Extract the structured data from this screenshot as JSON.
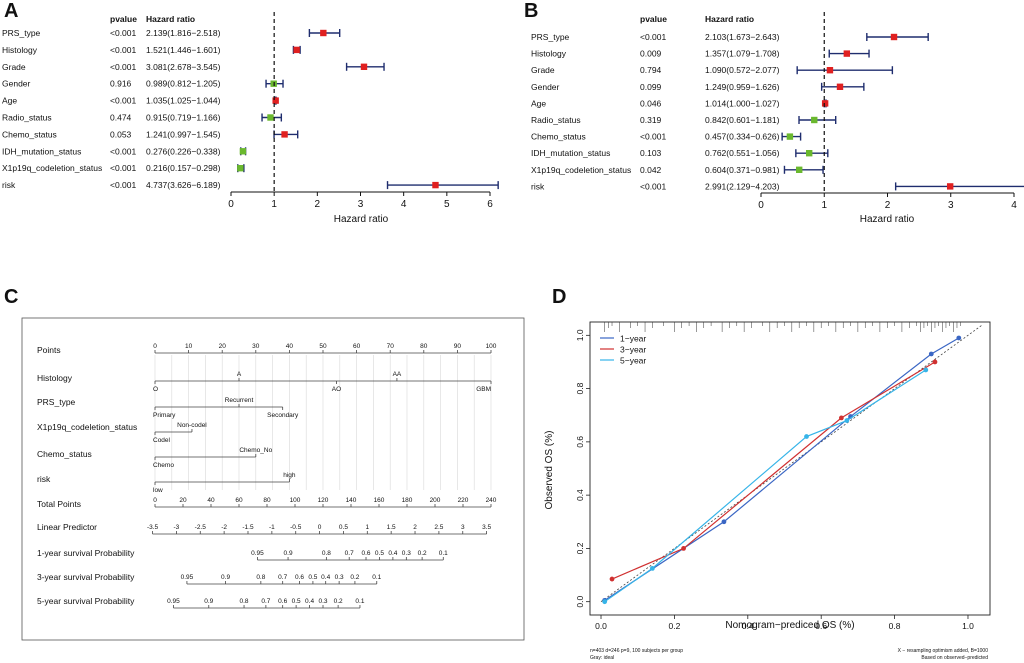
{
  "chart_data": [
    {
      "type": "forest",
      "panel": "A",
      "col_pvalue": "pvalue",
      "col_hr": "Hazard ratio",
      "xlabel": "Hazard ratio",
      "xlim": [
        0,
        6
      ],
      "ticks": [
        0,
        1,
        2,
        3,
        4,
        5,
        6
      ],
      "ref_line": 1,
      "rows": [
        {
          "name": "PRS_type",
          "pvalue": "<0.001",
          "hr_text": "2.139(1.816−2.518)",
          "hr": 2.139,
          "lo": 1.816,
          "hi": 2.518,
          "color": "#e02020"
        },
        {
          "name": "Histology",
          "pvalue": "<0.001",
          "hr_text": "1.521(1.446−1.601)",
          "hr": 1.521,
          "lo": 1.446,
          "hi": 1.601,
          "color": "#e02020"
        },
        {
          "name": "Grade",
          "pvalue": "<0.001",
          "hr_text": "3.081(2.678−3.545)",
          "hr": 3.081,
          "lo": 2.678,
          "hi": 3.545,
          "color": "#e02020"
        },
        {
          "name": "Gender",
          "pvalue": "0.916",
          "hr_text": "0.989(0.812−1.205)",
          "hr": 0.989,
          "lo": 0.812,
          "hi": 1.205,
          "color": "#6ab82e"
        },
        {
          "name": "Age",
          "pvalue": "<0.001",
          "hr_text": "1.035(1.025−1.044)",
          "hr": 1.035,
          "lo": 1.025,
          "hi": 1.044,
          "color": "#e02020"
        },
        {
          "name": "Radio_status",
          "pvalue": "0.474",
          "hr_text": "0.915(0.719−1.166)",
          "hr": 0.915,
          "lo": 0.719,
          "hi": 1.166,
          "color": "#6ab82e"
        },
        {
          "name": "Chemo_status",
          "pvalue": "0.053",
          "hr_text": "1.241(0.997−1.545)",
          "hr": 1.241,
          "lo": 0.997,
          "hi": 1.545,
          "color": "#e02020"
        },
        {
          "name": "IDH_mutation_status",
          "pvalue": "<0.001",
          "hr_text": "0.276(0.226−0.338)",
          "hr": 0.276,
          "lo": 0.226,
          "hi": 0.338,
          "color": "#6ab82e"
        },
        {
          "name": "X1p19q_codeletion_status",
          "pvalue": "<0.001",
          "hr_text": "0.216(0.157−0.298)",
          "hr": 0.216,
          "lo": 0.157,
          "hi": 0.298,
          "color": "#6ab82e"
        },
        {
          "name": "risk",
          "pvalue": "<0.001",
          "hr_text": "4.737(3.626−6.189)",
          "hr": 4.737,
          "lo": 3.626,
          "hi": 6.189,
          "color": "#e02020"
        }
      ]
    },
    {
      "type": "forest",
      "panel": "B",
      "col_pvalue": "pvalue",
      "col_hr": "Hazard ratio",
      "xlabel": "Hazard ratio",
      "xlim": [
        0,
        4
      ],
      "ticks": [
        0,
        1,
        2,
        3,
        4
      ],
      "ref_line": 1,
      "rows": [
        {
          "name": "PRS_type",
          "pvalue": "<0.001",
          "hr_text": "2.103(1.673−2.643)",
          "hr": 2.103,
          "lo": 1.673,
          "hi": 2.643,
          "color": "#e02020"
        },
        {
          "name": "Histology",
          "pvalue": "0.009",
          "hr_text": "1.357(1.079−1.708)",
          "hr": 1.357,
          "lo": 1.079,
          "hi": 1.708,
          "color": "#e02020"
        },
        {
          "name": "Grade",
          "pvalue": "0.794",
          "hr_text": "1.090(0.572−2.077)",
          "hr": 1.09,
          "lo": 0.572,
          "hi": 2.077,
          "color": "#e02020"
        },
        {
          "name": "Gender",
          "pvalue": "0.099",
          "hr_text": "1.249(0.959−1.626)",
          "hr": 1.249,
          "lo": 0.959,
          "hi": 1.626,
          "color": "#e02020"
        },
        {
          "name": "Age",
          "pvalue": "0.046",
          "hr_text": "1.014(1.000−1.027)",
          "hr": 1.014,
          "lo": 1.0,
          "hi": 1.027,
          "color": "#e02020"
        },
        {
          "name": "Radio_status",
          "pvalue": "0.319",
          "hr_text": "0.842(0.601−1.181)",
          "hr": 0.842,
          "lo": 0.601,
          "hi": 1.181,
          "color": "#6ab82e"
        },
        {
          "name": "Chemo_status",
          "pvalue": "<0.001",
          "hr_text": "0.457(0.334−0.626)",
          "hr": 0.457,
          "lo": 0.334,
          "hi": 0.626,
          "color": "#6ab82e"
        },
        {
          "name": "IDH_mutation_status",
          "pvalue": "0.103",
          "hr_text": "0.762(0.551−1.056)",
          "hr": 0.762,
          "lo": 0.551,
          "hi": 1.056,
          "color": "#6ab82e"
        },
        {
          "name": "X1p19q_codeletion_status",
          "pvalue": "0.042",
          "hr_text": "0.604(0.371−0.981)",
          "hr": 0.604,
          "lo": 0.371,
          "hi": 0.981,
          "color": "#6ab82e"
        },
        {
          "name": "risk",
          "pvalue": "<0.001",
          "hr_text": "2.991(2.129−4.203)",
          "hr": 2.991,
          "lo": 2.129,
          "hi": 4.203,
          "color": "#e02020"
        }
      ]
    },
    {
      "type": "nomogram",
      "panel": "C",
      "rows": [
        {
          "name": "Points",
          "kind": "axis",
          "range": [
            0,
            100
          ],
          "ticks": [
            [
              "0",
              0
            ],
            [
              "10",
              10
            ],
            [
              "20",
              20
            ],
            [
              "30",
              30
            ],
            [
              "40",
              40
            ],
            [
              "50",
              50
            ],
            [
              "60",
              60
            ],
            [
              "70",
              70
            ],
            [
              "80",
              80
            ],
            [
              "90",
              90
            ],
            [
              "100",
              100
            ]
          ]
        },
        {
          "name": "Histology",
          "kind": "var",
          "range": [
            0,
            100
          ],
          "line": [
            0,
            100
          ],
          "labels": [
            [
              "O",
              0,
              "below"
            ],
            [
              "A",
              25,
              "above"
            ],
            [
              "AO",
              54,
              "below"
            ],
            [
              "AA",
              72,
              "above"
            ],
            [
              "GBM",
              100,
              "below"
            ]
          ]
        },
        {
          "name": "PRS_type",
          "kind": "var",
          "range": [
            0,
            100
          ],
          "line": [
            0,
            38
          ],
          "labels": [
            [
              "Primary",
              0,
              "below"
            ],
            [
              "Recurrent",
              25,
              "above"
            ],
            [
              "Secondary",
              38,
              "below"
            ]
          ]
        },
        {
          "name": "X1p19q_codeletion_status",
          "kind": "var",
          "range": [
            0,
            100
          ],
          "line": [
            0,
            11
          ],
          "labels": [
            [
              "Codel",
              0,
              "below"
            ],
            [
              "Non-codel",
              11,
              "above"
            ]
          ]
        },
        {
          "name": "Chemo_status",
          "kind": "var",
          "range": [
            0,
            100
          ],
          "line": [
            0,
            30
          ],
          "labels": [
            [
              "Chemo",
              0,
              "below"
            ],
            [
              "Chemo_No",
              30,
              "above"
            ]
          ]
        },
        {
          "name": "risk",
          "kind": "var",
          "range": [
            0,
            100
          ],
          "line": [
            0,
            40
          ],
          "labels": [
            [
              "low",
              0,
              "below"
            ],
            [
              "high",
              40,
              "above"
            ]
          ]
        },
        {
          "name": "Total Points",
          "kind": "axis",
          "range": [
            0,
            240
          ],
          "ticks": [
            [
              "0",
              0
            ],
            [
              "20",
              20
            ],
            [
              "40",
              40
            ],
            [
              "60",
              60
            ],
            [
              "80",
              80
            ],
            [
              "100",
              100
            ],
            [
              "120",
              120
            ],
            [
              "140",
              140
            ],
            [
              "160",
              160
            ],
            [
              "180",
              180
            ],
            [
              "200",
              200
            ],
            [
              "220",
              220
            ],
            [
              "240",
              240
            ]
          ]
        },
        {
          "name": "Linear Predictor",
          "kind": "axis",
          "range": [
            -3.7,
            3.55
          ],
          "ticks": [
            [
              "-3.5",
              -3.5
            ],
            [
              "-3",
              -3
            ],
            [
              "-2.5",
              -2.5
            ],
            [
              "-2",
              -2
            ],
            [
              "-1.5",
              -1.5
            ],
            [
              "-1",
              -1
            ],
            [
              "-0.5",
              -0.5
            ],
            [
              "0",
              0
            ],
            [
              "0.5",
              0.5
            ],
            [
              "1",
              1
            ],
            [
              "1.5",
              1.5
            ],
            [
              "2",
              2
            ],
            [
              "2.5",
              2.5
            ],
            [
              "3",
              3
            ],
            [
              "3.5",
              3.5
            ]
          ]
        },
        {
          "name": "1-year survival Probability",
          "kind": "axis",
          "range": [
            0,
            100
          ],
          "ticks": [
            [
              "0.95",
              30.5
            ],
            [
              "0.9",
              39.6
            ],
            [
              "0.8",
              51.0
            ],
            [
              "0.7",
              57.8
            ],
            [
              "0.6",
              62.8
            ],
            [
              "0.5",
              66.8
            ],
            [
              "0.4",
              70.8
            ],
            [
              "0.3",
              74.8
            ],
            [
              "0.2",
              79.5
            ],
            [
              "0.1",
              85.8
            ]
          ]
        },
        {
          "name": "3-year survival Probability",
          "kind": "axis",
          "range": [
            0,
            100
          ],
          "ticks": [
            [
              "0.95",
              9.5
            ],
            [
              "0.9",
              21.0
            ],
            [
              "0.8",
              31.5
            ],
            [
              "0.7",
              38.0
            ],
            [
              "0.6",
              43.0
            ],
            [
              "0.5",
              47.0
            ],
            [
              "0.4",
              50.8
            ],
            [
              "0.3",
              54.8
            ],
            [
              "0.2",
              59.5
            ],
            [
              "0.1",
              66.0
            ]
          ]
        },
        {
          "name": "5-year survival Probability",
          "kind": "axis",
          "range": [
            0,
            100
          ],
          "ticks": [
            [
              "0.95",
              5.5
            ],
            [
              "0.9",
              16.0
            ],
            [
              "0.8",
              26.5
            ],
            [
              "0.7",
              33.0
            ],
            [
              "0.6",
              38.0
            ],
            [
              "0.5",
              42.0
            ],
            [
              "0.4",
              46.0
            ],
            [
              "0.3",
              50.0
            ],
            [
              "0.2",
              54.5
            ],
            [
              "0.1",
              61.0
            ]
          ]
        }
      ]
    },
    {
      "type": "line",
      "panel": "D",
      "xlabel": "Nomogram−prediced OS (%)",
      "ylabel": "Observed OS (%)",
      "xlim": [
        -0.03,
        1.06
      ],
      "ylim": [
        -0.05,
        1.05
      ],
      "xticks": [
        "0.0",
        "0.2",
        "0.4",
        "0.6",
        "0.8",
        "1.0"
      ],
      "yticks": [
        "0.0",
        "0.2",
        "0.4",
        "0.6",
        "0.8",
        "1.0"
      ],
      "legend": "top-left",
      "series": [
        {
          "name": "1−year",
          "color": "#3a66c4",
          "x": [
            0.01,
            0.335,
            0.68,
            0.9,
            0.975
          ],
          "y": [
            0.005,
            0.3,
            0.695,
            0.93,
            0.99
          ]
        },
        {
          "name": "3−year",
          "color": "#d03030",
          "x": [
            0.03,
            0.225,
            0.655,
            0.91
          ],
          "y": [
            0.085,
            0.2,
            0.69,
            0.9
          ]
        },
        {
          "name": "5−year",
          "color": "#36b4e8",
          "x": [
            0.01,
            0.14,
            0.56,
            0.67,
            0.885
          ],
          "y": [
            0.0,
            0.125,
            0.62,
            0.68,
            0.87
          ]
        }
      ],
      "footnote_left_1": "n=403 d=246 p=9, 100 subjects per group",
      "footnote_left_2": "Gray: ideal",
      "footnote_right_1": "X − resampling optimism added, B=1000",
      "footnote_right_2": "Based on observed−predicted"
    }
  ]
}
